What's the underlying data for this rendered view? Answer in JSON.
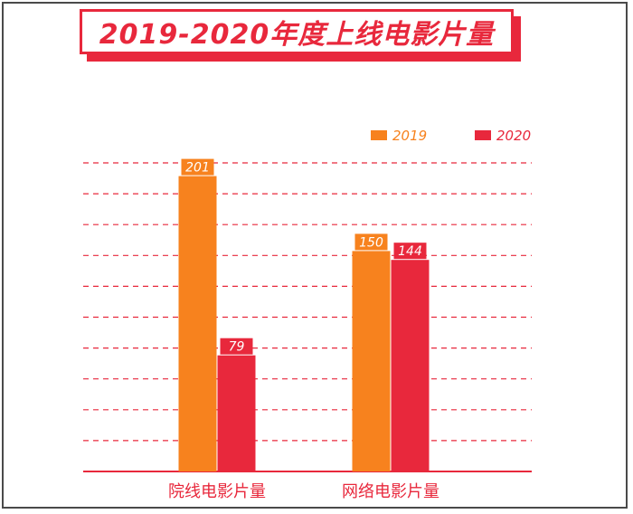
{
  "title": "2019-2020年度上线电影片量",
  "colors": {
    "accent": "#e8283c",
    "series_2019": "#f7821e",
    "series_2020": "#e8283c"
  },
  "chart_data": {
    "type": "bar",
    "title": "2019-2020年度上线电影片量",
    "categories": [
      "院线电影片量",
      "网络电影片量"
    ],
    "series": [
      {
        "name": "2019",
        "values": [
          201,
          150
        ],
        "color": "#f7821e"
      },
      {
        "name": "2020",
        "values": [
          79,
          144
        ],
        "color": "#e8283c"
      }
    ],
    "ylim": [
      0,
      210
    ],
    "grid": true,
    "legend_position": "top-right",
    "data_labels": true
  }
}
